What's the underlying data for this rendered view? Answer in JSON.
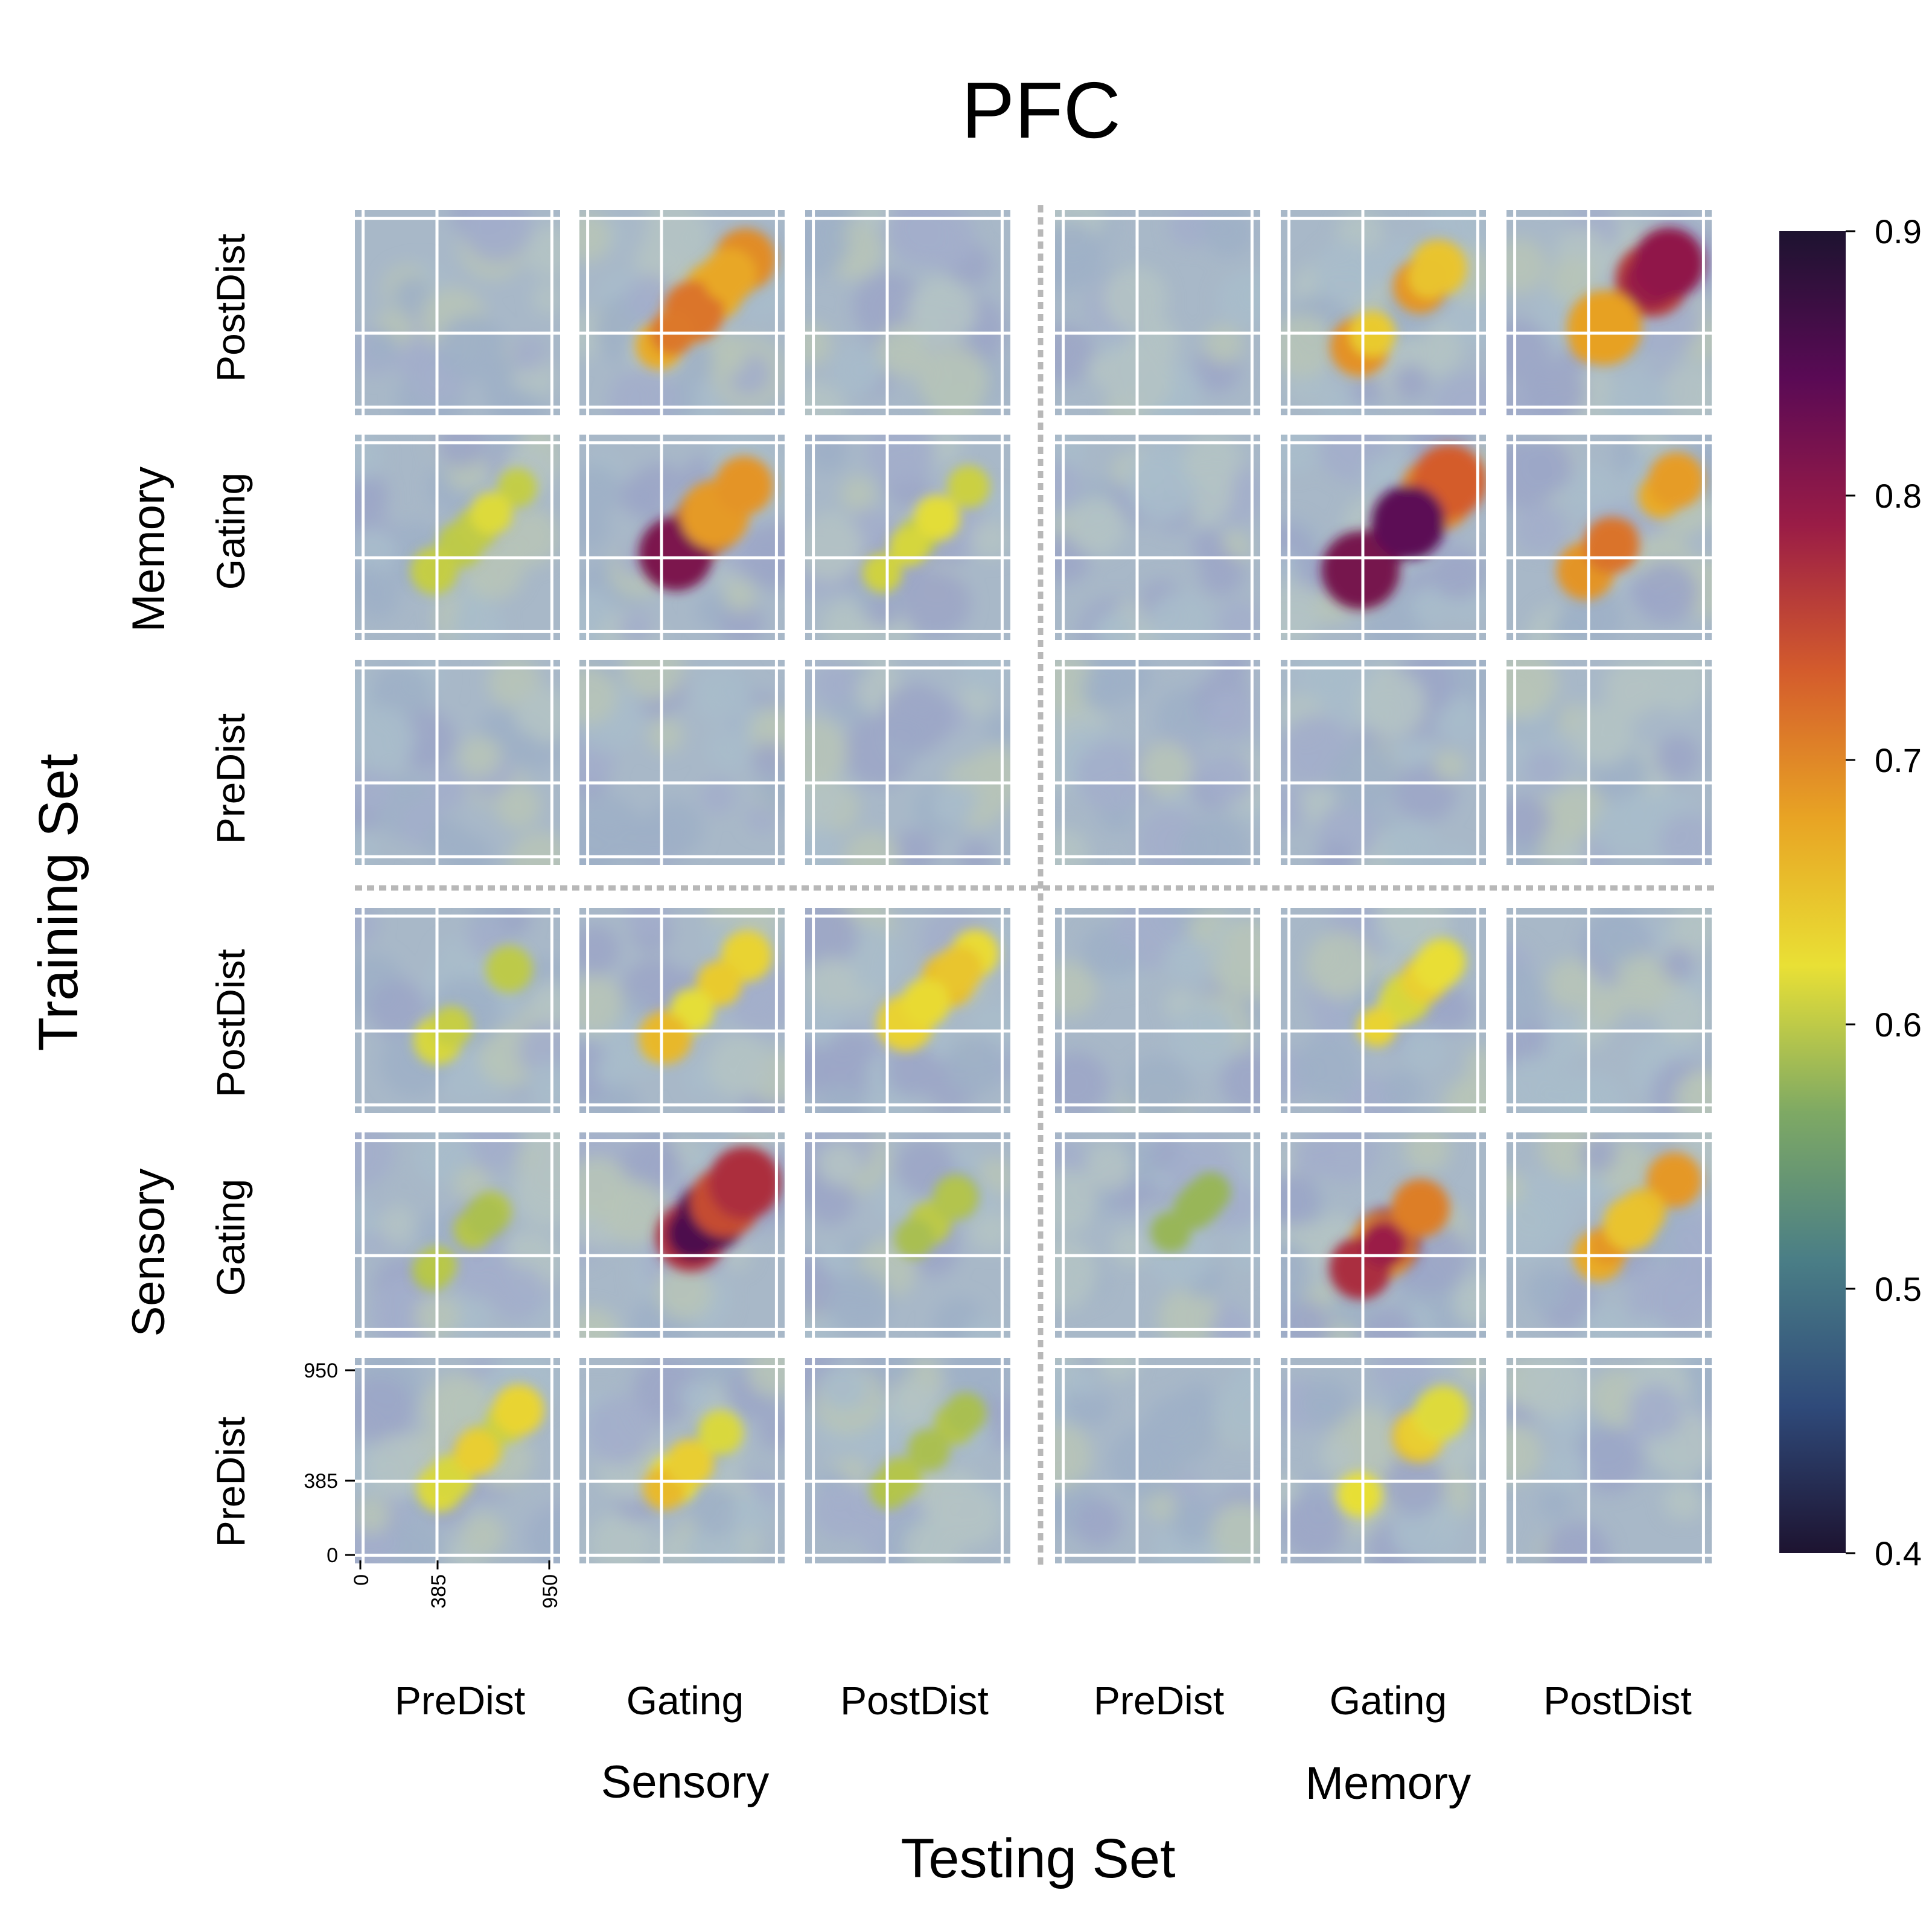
{
  "title": "PFC",
  "x_axis_title": "Testing Set",
  "y_axis_title": "Training Set",
  "groups": [
    "Sensory",
    "Memory"
  ],
  "conditions": [
    "PreDist",
    "Gating",
    "PostDist"
  ],
  "tick_values": [
    0,
    385,
    950
  ],
  "colorbar": {
    "colormap": "inferno_r",
    "min": 0.4,
    "max": 0.9,
    "ticks": [
      "0.4",
      "0.5",
      "0.6",
      "0.7",
      "0.8",
      "0.9"
    ],
    "colors": [
      "#1d1330",
      "#2f4a7a",
      "#4a7e86",
      "#7ea964",
      "#e9e035",
      "#e8a424",
      "#d45c2c",
      "#9a1c46",
      "#5a0a55",
      "#1d1330"
    ]
  },
  "chart_data": {
    "type": "heatmap",
    "title": "PFC",
    "xlabel": "Testing Set",
    "ylabel": "Training Set",
    "x_groups": [
      "Sensory",
      "Memory"
    ],
    "y_groups": [
      "Sensory",
      "Memory"
    ],
    "conditions": [
      "PreDist",
      "Gating",
      "PostDist"
    ],
    "time_ticks": [
      0,
      385,
      950
    ],
    "value_range": [
      0.4,
      0.9
    ],
    "cells_note_order": "rows top-to-bottom: Memory-PostDist, Memory-Gating, Memory-PreDist, Sensory-PostDist, Sensory-Gating, Sensory-PreDist; columns left-to-right: Sensory-PreDist, Sensory-Gating, Sensory-PostDist, Memory-PreDist, Memory-Gating, Memory-PostDist",
    "peak_accuracy": [
      [
        0.5,
        0.72,
        0.5,
        0.5,
        0.7,
        0.82
      ],
      [
        0.62,
        0.82,
        0.62,
        0.5,
        0.86,
        0.72
      ],
      [
        0.5,
        0.5,
        0.5,
        0.5,
        0.5,
        0.5
      ],
      [
        0.62,
        0.66,
        0.68,
        0.5,
        0.64,
        0.5
      ],
      [
        0.6,
        0.86,
        0.6,
        0.58,
        0.8,
        0.7
      ],
      [
        0.64,
        0.66,
        0.6,
        0.5,
        0.66,
        0.5
      ]
    ]
  }
}
